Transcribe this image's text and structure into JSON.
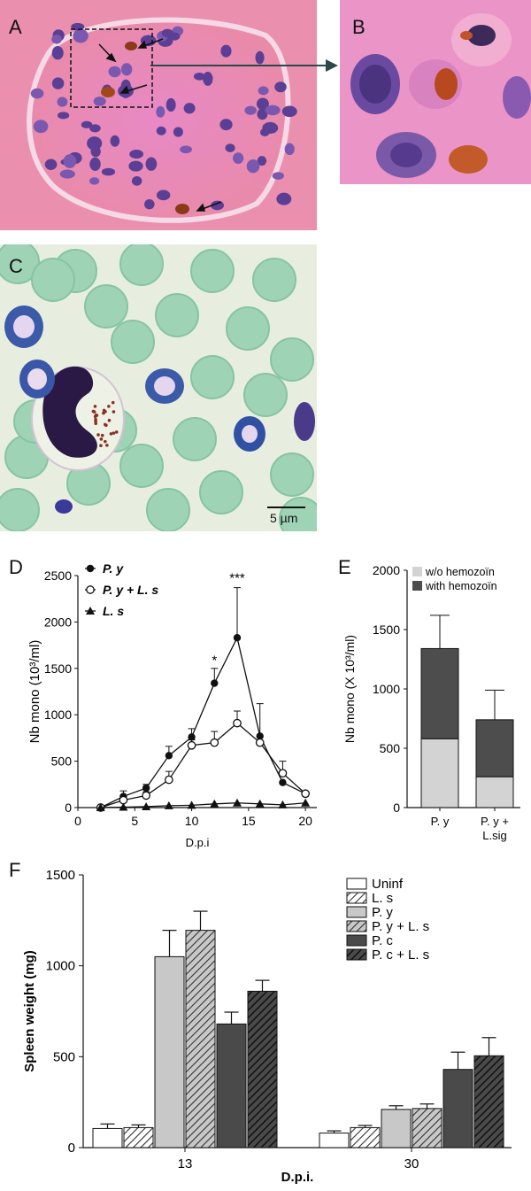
{
  "panels": {
    "a": {
      "label": "A"
    },
    "b": {
      "label": "B"
    },
    "c": {
      "label": "C",
      "scale_bar": "5 µm"
    },
    "d": {
      "label": "D"
    },
    "e": {
      "label": "E"
    },
    "f": {
      "label": "F"
    }
  },
  "chart_data": [
    {
      "id": "D",
      "type": "line",
      "xlabel": "D.p.i",
      "ylabel": "Nb mono (10³/ml)",
      "xlim": [
        0,
        21
      ],
      "ylim": [
        0,
        2500
      ],
      "xticks": [
        0,
        5,
        10,
        15,
        20
      ],
      "yticks": [
        0,
        500,
        1000,
        1500,
        2000,
        2500
      ],
      "legend_position": "top-left",
      "annotations": [
        {
          "text": "*",
          "x": 12,
          "y": 1540
        },
        {
          "text": "***",
          "x": 14,
          "y": 2430
        }
      ],
      "series": [
        {
          "name": "P. y",
          "marker": "filled-circle",
          "x": [
            2,
            4,
            6,
            8,
            10,
            12,
            14,
            16,
            18,
            20
          ],
          "y": [
            0,
            120,
            210,
            560,
            760,
            1340,
            1830,
            770,
            270,
            150
          ],
          "error": [
            0,
            60,
            40,
            100,
            90,
            160,
            540,
            0,
            0,
            20
          ]
        },
        {
          "name": "P. y + L. s",
          "marker": "open-circle",
          "x": [
            2,
            4,
            6,
            8,
            10,
            12,
            14,
            16,
            18,
            20
          ],
          "y": [
            0,
            80,
            130,
            300,
            670,
            700,
            910,
            700,
            370,
            150
          ],
          "error": [
            0,
            40,
            40,
            90,
            60,
            120,
            130,
            420,
            130,
            20
          ]
        },
        {
          "name": "L. s",
          "marker": "filled-triangle",
          "x": [
            2,
            4,
            6,
            8,
            10,
            12,
            14,
            16,
            18,
            20
          ],
          "y": [
            0,
            5,
            10,
            20,
            25,
            40,
            50,
            40,
            30,
            50
          ],
          "error": [
            0,
            0,
            0,
            0,
            0,
            0,
            0,
            0,
            0,
            0
          ]
        }
      ]
    },
    {
      "id": "E",
      "type": "bar",
      "stacked": true,
      "ylabel": "Nb mono (X 10³/ml)",
      "ylim": [
        0,
        2000
      ],
      "yticks": [
        0,
        500,
        1000,
        1500,
        2000
      ],
      "categories": [
        "P. y",
        "P. y + L.sig"
      ],
      "legend_position": "top",
      "series": [
        {
          "name": "w/o hemozoïn",
          "color": "#d3d3d3",
          "values": [
            580,
            260
          ],
          "error": [
            240,
            140
          ]
        },
        {
          "name": "with hemozoïn",
          "color": "#4d4d4d",
          "values": [
            760,
            480
          ],
          "error": [
            280,
            250
          ]
        }
      ]
    },
    {
      "id": "F",
      "type": "bar",
      "xlabel": "D.p.i.",
      "ylabel": "Spleen weight (mg)",
      "ylim": [
        0,
        1500
      ],
      "yticks": [
        0,
        500,
        1000,
        1500
      ],
      "categories": [
        "13",
        "30"
      ],
      "legend_position": "top-right",
      "series": [
        {
          "name": "Uninf",
          "fill": "#ffffff",
          "hatch": false,
          "values": [
            105,
            80
          ],
          "error": [
            25,
            12
          ]
        },
        {
          "name": "L. s",
          "fill": "#ffffff",
          "hatch": true,
          "values": [
            110,
            110
          ],
          "error": [
            15,
            12
          ]
        },
        {
          "name": "P. y",
          "fill": "#c8c8c8",
          "hatch": false,
          "values": [
            1050,
            210
          ],
          "error": [
            145,
            20
          ]
        },
        {
          "name": "P. y + L. s",
          "fill": "#c8c8c8",
          "hatch": true,
          "values": [
            1195,
            215
          ],
          "error": [
            105,
            25
          ]
        },
        {
          "name": "P. c",
          "fill": "#4a4a4a",
          "hatch": false,
          "values": [
            680,
            430
          ],
          "error": [
            65,
            95
          ]
        },
        {
          "name": "P. c + L. s",
          "fill": "#4a4a4a",
          "hatch": true,
          "values": [
            860,
            505
          ],
          "error": [
            60,
            100
          ]
        }
      ]
    }
  ]
}
